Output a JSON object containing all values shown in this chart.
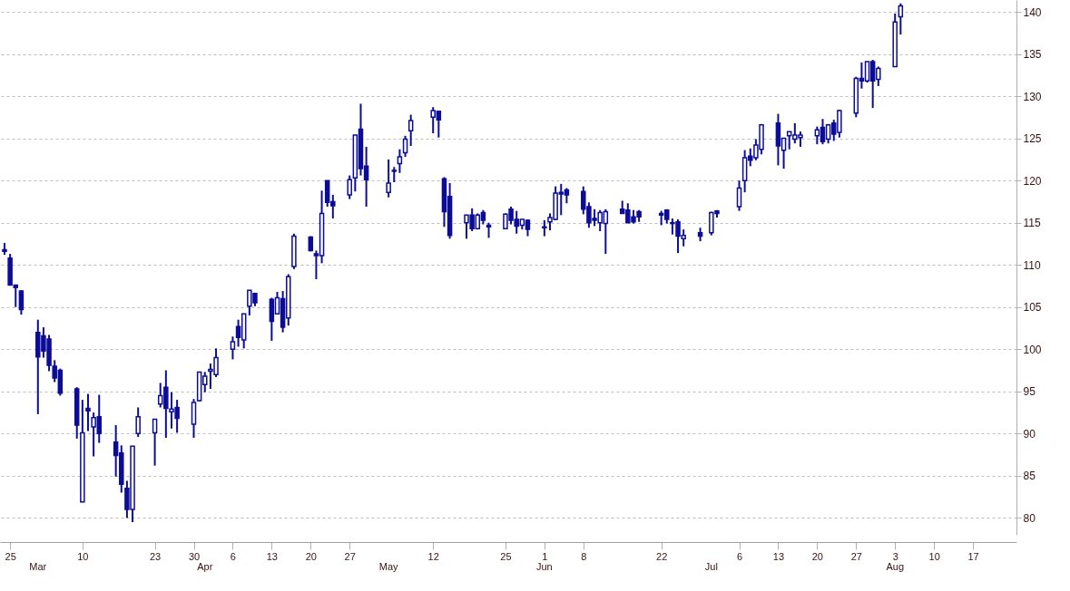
{
  "chart_data": {
    "type": "candlestick",
    "color": "#0c0c98",
    "grid": "y",
    "xlim": [
      "--02-24",
      "--08-24"
    ],
    "ylim": [
      78,
      141.4
    ],
    "yticks": [
      80,
      85,
      90,
      95,
      100,
      105,
      110,
      115,
      120,
      125,
      130,
      135,
      140
    ],
    "xticks": [
      {
        "value": "--02-25",
        "label": "25"
      },
      {
        "value": "--03-10",
        "label": "10"
      },
      {
        "value": "--03-23",
        "label": "23"
      },
      {
        "value": "--03-30",
        "label": "30"
      },
      {
        "value": "--04-06",
        "label": "6"
      },
      {
        "value": "--04-13",
        "label": "13"
      },
      {
        "value": "--04-20",
        "label": "20"
      },
      {
        "value": "--04-27",
        "label": "27"
      },
      {
        "value": "--05-12",
        "label": "12"
      },
      {
        "value": "--05-25",
        "label": "25"
      },
      {
        "value": "--06-01",
        "label": "1"
      },
      {
        "value": "--06-08",
        "label": "8"
      },
      {
        "value": "--06-22",
        "label": "22"
      },
      {
        "value": "--07-06",
        "label": "6"
      },
      {
        "value": "--07-13",
        "label": "13"
      },
      {
        "value": "--07-20",
        "label": "20"
      },
      {
        "value": "--07-27",
        "label": "27"
      },
      {
        "value": "--08-03",
        "label": "3"
      },
      {
        "value": "--08-10",
        "label": "10"
      },
      {
        "value": "--08-17",
        "label": "17"
      }
    ],
    "x": [
      "--02-24",
      "--02-25",
      "--02-26",
      "--02-27",
      "--03-02",
      "--03-03",
      "--03-04",
      "--03-05",
      "--03-06",
      "--03-09",
      "--03-10",
      "--03-11",
      "--03-12",
      "--03-13",
      "--03-16",
      "--03-17",
      "--03-18",
      "--03-19",
      "--03-20",
      "--03-23",
      "--03-24",
      "--03-25",
      "--03-26",
      "--03-27",
      "--03-30",
      "--03-31",
      "--04-01",
      "--04-02",
      "--04-03",
      "--04-06",
      "--04-07",
      "--04-08",
      "--04-09",
      "--04-10",
      "--04-13",
      "--04-14",
      "--04-15",
      "--04-16",
      "--04-17",
      "--04-20",
      "--04-21",
      "--04-22",
      "--04-23",
      "--04-24",
      "--04-27",
      "--04-28",
      "--04-29",
      "--04-30",
      "--05-04",
      "--05-05",
      "--05-06",
      "--05-07",
      "--05-08",
      "--05-12",
      "--05-13",
      "--05-14",
      "--05-15",
      "--05-18",
      "--05-19",
      "--05-20",
      "--05-21",
      "--05-22",
      "--05-25",
      "--05-26",
      "--05-27",
      "--05-28",
      "--05-29",
      "--06-01",
      "--06-02",
      "--06-03",
      "--06-04",
      "--06-05",
      "--06-08",
      "--06-09",
      "--06-10",
      "--06-11",
      "--06-12",
      "--06-15",
      "--06-16",
      "--06-17",
      "--06-18",
      "--06-22",
      "--06-23",
      "--06-24",
      "--06-25",
      "--06-26",
      "--06-29",
      "--07-01",
      "--07-02",
      "--07-06",
      "--07-07",
      "--07-08",
      "--07-09",
      "--07-10",
      "--07-13",
      "--07-14",
      "--07-15",
      "--07-16",
      "--07-17",
      "--07-20",
      "--07-21",
      "--07-22",
      "--07-23",
      "--07-24",
      "--07-27",
      "--07-28",
      "--07-29",
      "--07-30",
      "--07-31",
      "--08-03",
      "--08-04"
    ],
    "ohlc": [
      [
        111.8,
        112.6,
        111.2,
        111.6
      ],
      [
        110.8,
        111.3,
        107.6,
        107.6
      ],
      [
        107.6,
        107.6,
        105.0,
        107.3
      ],
      [
        106.9,
        107.0,
        104.1,
        104.7
      ],
      [
        102.0,
        103.5,
        92.3,
        99.1
      ],
      [
        101.6,
        102.6,
        99.0,
        99.8
      ],
      [
        101.2,
        101.7,
        97.4,
        98.1
      ],
      [
        98.0,
        98.7,
        96.1,
        96.6
      ],
      [
        97.5,
        97.7,
        94.5,
        94.8
      ],
      [
        95.3,
        95.5,
        89.4,
        91.0
      ],
      [
        81.9,
        94.0,
        81.9,
        90.1
      ],
      [
        93.0,
        94.7,
        90.3,
        92.7
      ],
      [
        90.8,
        92.5,
        87.3,
        91.9
      ],
      [
        92.0,
        94.6,
        88.9,
        90.0
      ],
      [
        89.0,
        91.0,
        84.9,
        87.4
      ],
      [
        87.7,
        88.6,
        83.0,
        84.0
      ],
      [
        83.5,
        84.4,
        80.0,
        81.0
      ],
      [
        81.0,
        88.5,
        79.5,
        88.5
      ],
      [
        90.0,
        93.1,
        89.6,
        92.0
      ],
      [
        90.1,
        91.7,
        86.2,
        91.7
      ],
      [
        93.5,
        96.0,
        93.1,
        94.5
      ],
      [
        95.5,
        97.5,
        89.5,
        93.0
      ],
      [
        92.6,
        94.9,
        90.6,
        92.9
      ],
      [
        93.1,
        94.0,
        90.1,
        91.8
      ],
      [
        91.1,
        94.1,
        89.5,
        93.7
      ],
      [
        93.9,
        97.3,
        93.8,
        97.3
      ],
      [
        95.8,
        97.3,
        94.9,
        96.8
      ],
      [
        97.4,
        98.3,
        95.3,
        97.6
      ],
      [
        97.0,
        100.1,
        96.7,
        99.0
      ],
      [
        100.0,
        101.5,
        98.8,
        100.9
      ],
      [
        102.7,
        103.5,
        100.3,
        101.4
      ],
      [
        101.1,
        104.2,
        100.1,
        104.2
      ],
      [
        105.1,
        107.0,
        104.0,
        107.0
      ],
      [
        106.6,
        106.7,
        105.1,
        105.5
      ],
      [
        105.9,
        106.1,
        101.0,
        103.3
      ],
      [
        104.2,
        106.8,
        104.2,
        106.1
      ],
      [
        106.0,
        106.9,
        102.0,
        102.6
      ],
      [
        103.7,
        108.9,
        102.8,
        108.6
      ],
      [
        109.8,
        113.7,
        109.5,
        113.4
      ],
      [
        113.3,
        113.4,
        111.6,
        111.7
      ],
      [
        111.3,
        111.7,
        108.3,
        111.1
      ],
      [
        111.1,
        118.8,
        110.2,
        116.1
      ],
      [
        120.0,
        120.0,
        116.9,
        117.4
      ],
      [
        117.5,
        118.3,
        115.5,
        117.0
      ],
      [
        118.3,
        120.6,
        117.8,
        120.1
      ],
      [
        120.3,
        125.4,
        118.7,
        125.4
      ],
      [
        126.1,
        129.1,
        120.6,
        121.4
      ],
      [
        121.7,
        124.0,
        116.9,
        120.1
      ],
      [
        118.6,
        122.5,
        118.0,
        119.7
      ],
      [
        121.1,
        121.6,
        119.8,
        121.2
      ],
      [
        122.0,
        123.7,
        120.9,
        122.8
      ],
      [
        123.3,
        125.3,
        122.8,
        124.9
      ],
      [
        125.9,
        127.8,
        124.1,
        127.1
      ],
      [
        127.5,
        128.7,
        125.6,
        128.3
      ],
      [
        128.2,
        128.2,
        125.1,
        127.2
      ],
      [
        120.2,
        120.4,
        114.5,
        116.3
      ],
      [
        118.1,
        119.7,
        113.1,
        113.5
      ],
      [
        115.0,
        115.9,
        113.1,
        115.9
      ],
      [
        115.9,
        116.7,
        114.0,
        114.3
      ],
      [
        114.3,
        116.1,
        114.2,
        115.9
      ],
      [
        116.2,
        116.5,
        114.8,
        115.3
      ],
      [
        114.7,
        115.0,
        113.2,
        114.5
      ],
      [
        114.3,
        116.1,
        114.3,
        116.0
      ],
      [
        116.6,
        116.9,
        114.8,
        115.3
      ],
      [
        115.4,
        116.4,
        113.7,
        114.6
      ],
      [
        114.7,
        115.4,
        114.2,
        115.4
      ],
      [
        115.3,
        115.4,
        113.4,
        114.2
      ],
      [
        114.5,
        115.3,
        113.4,
        114.4
      ],
      [
        115.1,
        116.1,
        114.1,
        115.6
      ],
      [
        115.4,
        119.3,
        115.3,
        118.5
      ],
      [
        118.6,
        119.6,
        115.9,
        118.4
      ],
      [
        118.9,
        119.1,
        117.3,
        118.3
      ],
      [
        118.7,
        119.3,
        116.0,
        116.6
      ],
      [
        116.9,
        117.4,
        114.4,
        115.0
      ],
      [
        115.5,
        116.6,
        114.6,
        115.3
      ],
      [
        115.0,
        116.5,
        114.0,
        116.2
      ],
      [
        114.9,
        116.6,
        111.3,
        116.3
      ],
      [
        116.6,
        117.6,
        116.1,
        116.1
      ],
      [
        116.5,
        117.3,
        115.0,
        115.0
      ],
      [
        115.7,
        116.5,
        114.9,
        115.1
      ],
      [
        116.3,
        116.5,
        115.1,
        115.7
      ],
      [
        116.1,
        116.4,
        114.7,
        115.9
      ],
      [
        116.5,
        116.6,
        114.9,
        115.4
      ],
      [
        115.0,
        115.5,
        113.6,
        114.9
      ],
      [
        115.1,
        115.4,
        111.4,
        113.4
      ],
      [
        113.1,
        114.2,
        112.2,
        113.5
      ],
      [
        113.8,
        114.4,
        112.8,
        113.4
      ],
      [
        113.8,
        116.3,
        113.5,
        116.2
      ],
      [
        116.4,
        116.5,
        115.6,
        116.1
      ],
      [
        116.9,
        120.0,
        116.4,
        119.1
      ],
      [
        120.0,
        123.6,
        118.6,
        122.7
      ],
      [
        122.9,
        123.8,
        121.7,
        122.4
      ],
      [
        122.7,
        124.9,
        122.4,
        124.2
      ],
      [
        123.7,
        126.7,
        123.1,
        126.6
      ],
      [
        126.8,
        127.9,
        121.8,
        124.1
      ],
      [
        123.6,
        125.0,
        121.4,
        125.0
      ],
      [
        125.3,
        125.8,
        123.7,
        125.8
      ],
      [
        124.9,
        126.8,
        124.4,
        125.4
      ],
      [
        125.1,
        125.8,
        124.0,
        125.4
      ],
      [
        125.3,
        126.4,
        124.3,
        126.0
      ],
      [
        126.3,
        127.3,
        124.3,
        124.6
      ],
      [
        124.9,
        126.7,
        124.4,
        126.6
      ],
      [
        126.8,
        127.2,
        124.7,
        125.5
      ],
      [
        125.7,
        128.4,
        125.1,
        128.3
      ],
      [
        128.0,
        132.3,
        127.5,
        132.1
      ],
      [
        132.1,
        134.0,
        130.9,
        131.8
      ],
      [
        131.8,
        134.1,
        131.6,
        134.1
      ],
      [
        134.1,
        134.3,
        128.6,
        131.8
      ],
      [
        132.0,
        133.5,
        131.2,
        133.3
      ],
      [
        133.5,
        139.8,
        133.5,
        138.8
      ],
      [
        139.4,
        141.0,
        137.3,
        140.7
      ]
    ],
    "annotations": [
      "Mar",
      "Apr",
      "May",
      "Jun",
      "Jul",
      "Aug"
    ]
  }
}
